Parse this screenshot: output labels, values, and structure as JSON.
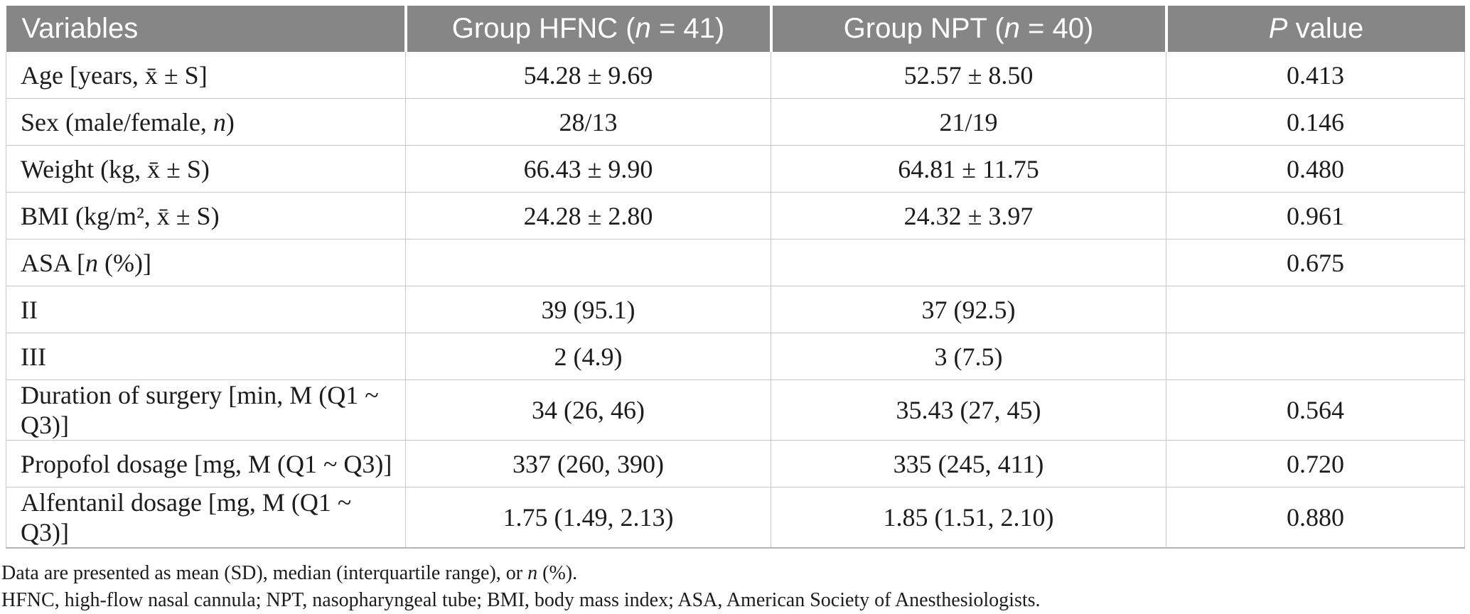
{
  "table": {
    "header": {
      "col1": "Variables",
      "col2": {
        "pre": "Group HFNC (",
        "italic": "n",
        "post": " = 41)"
      },
      "col3": {
        "pre": "Group NPT (",
        "italic": "n",
        "post": " = 40)"
      },
      "col4": {
        "italic": "P",
        "post": " value"
      }
    },
    "rows": [
      {
        "label": {
          "pre": "Age [years, x̄ ± S]"
        },
        "hfnc": "54.28 ± 9.69",
        "npt": "52.57 ± 8.50",
        "p": "0.413"
      },
      {
        "label": {
          "pre": "Sex (male/female, ",
          "italic": "n",
          "post": ")"
        },
        "hfnc": "28/13",
        "npt": "21/19",
        "p": "0.146"
      },
      {
        "label": {
          "pre": "Weight (kg, x̄ ± S)"
        },
        "hfnc": "66.43 ± 9.90",
        "npt": "64.81 ± 11.75",
        "p": "0.480"
      },
      {
        "label": {
          "pre": "BMI (kg/m², x̄ ± S)"
        },
        "hfnc": "24.28 ± 2.80",
        "npt": "24.32 ± 3.97",
        "p": "0.961"
      },
      {
        "label": {
          "pre": "ASA [",
          "italic": "n",
          "post": " (%)]"
        },
        "hfnc": "",
        "npt": "",
        "p": "0.675"
      },
      {
        "label": {
          "pre": "II"
        },
        "hfnc": "39 (95.1)",
        "npt": "37 (92.5)",
        "p": ""
      },
      {
        "label": {
          "pre": "III"
        },
        "hfnc": "2 (4.9)",
        "npt": "3 (7.5)",
        "p": ""
      },
      {
        "label": {
          "pre": "Duration of surgery [min, M (Q1 ~ Q3)]"
        },
        "hfnc": "34 (26, 46)",
        "npt": "35.43 (27, 45)",
        "p": "0.564"
      },
      {
        "label": {
          "pre": "Propofol dosage [mg, M (Q1 ~ Q3)]"
        },
        "hfnc": "337 (260, 390)",
        "npt": "335 (245, 411)",
        "p": "0.720"
      },
      {
        "label": {
          "pre": "Alfentanil dosage [mg, M (Q1 ~ Q3)]"
        },
        "hfnc": "1.75 (1.49, 2.13)",
        "npt": "1.85 (1.51, 2.10)",
        "p": "0.880"
      }
    ],
    "footnotes": [
      {
        "pre": "Data are presented as mean (SD), median (interquartile range), or ",
        "italic": "n",
        "post": " (%)."
      },
      {
        "pre": "HFNC, high-flow nasal cannula; NPT, nasopharyngeal tube; BMI, body mass index; ASA, American Society of Anesthesiologists."
      }
    ],
    "colors": {
      "header_bg": "#868686",
      "header_text": "#ffffff",
      "body_text": "#1c1c1c",
      "grid_line": "#c8c8c8"
    }
  }
}
